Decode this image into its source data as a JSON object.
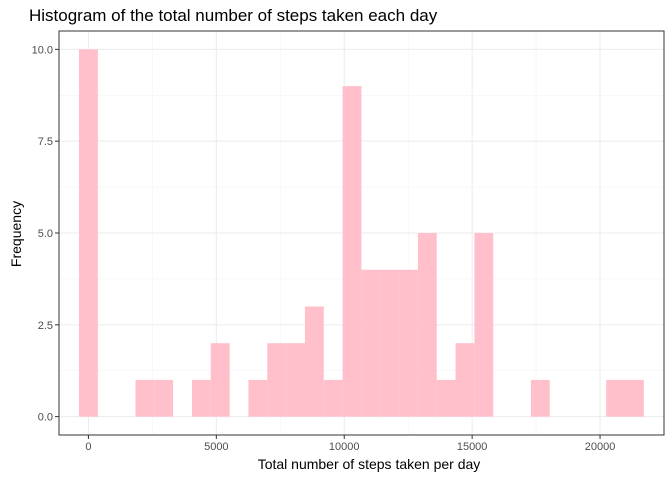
{
  "colors": {
    "bar_fill": "#FFC0CB",
    "panel_border": "#333333",
    "grid_major": "#EBEBEB",
    "grid_minor": "#F4F4F4",
    "tick_label": "#4D4D4D"
  },
  "chart_data": {
    "type": "bar",
    "title": "Histogram of the total number of steps taken each day",
    "xlabel": "Total number of steps taken per day",
    "ylabel": "Frequency",
    "bin_width": 736,
    "bin_centers": [
      0,
      736,
      1472,
      2208,
      2944,
      3680,
      4416,
      5152,
      5888,
      6624,
      7360,
      8096,
      8832,
      9568,
      10304,
      11040,
      11776,
      12512,
      13248,
      13984,
      14720,
      15456,
      16192,
      16928,
      17664,
      18400,
      19136,
      19872,
      20608,
      21344
    ],
    "values": [
      10,
      0,
      0,
      1,
      1,
      0,
      1,
      2,
      0,
      1,
      2,
      2,
      3,
      1,
      9,
      4,
      4,
      4,
      5,
      1,
      2,
      5,
      0,
      0,
      1,
      0,
      0,
      0,
      1,
      1
    ],
    "xlim": [
      -1150,
      22500
    ],
    "ylim": [
      -0.5,
      10.5
    ],
    "x_ticks": [
      0,
      5000,
      10000,
      15000,
      20000
    ],
    "x_tick_labels": [
      "0",
      "5000",
      "10000",
      "15000",
      "20000"
    ],
    "y_ticks": [
      0,
      2.5,
      5,
      7.5,
      10
    ],
    "y_tick_labels": [
      "0.0",
      "2.5",
      "5.0",
      "7.5",
      "10.0"
    ],
    "grid": true,
    "legend": "none"
  }
}
